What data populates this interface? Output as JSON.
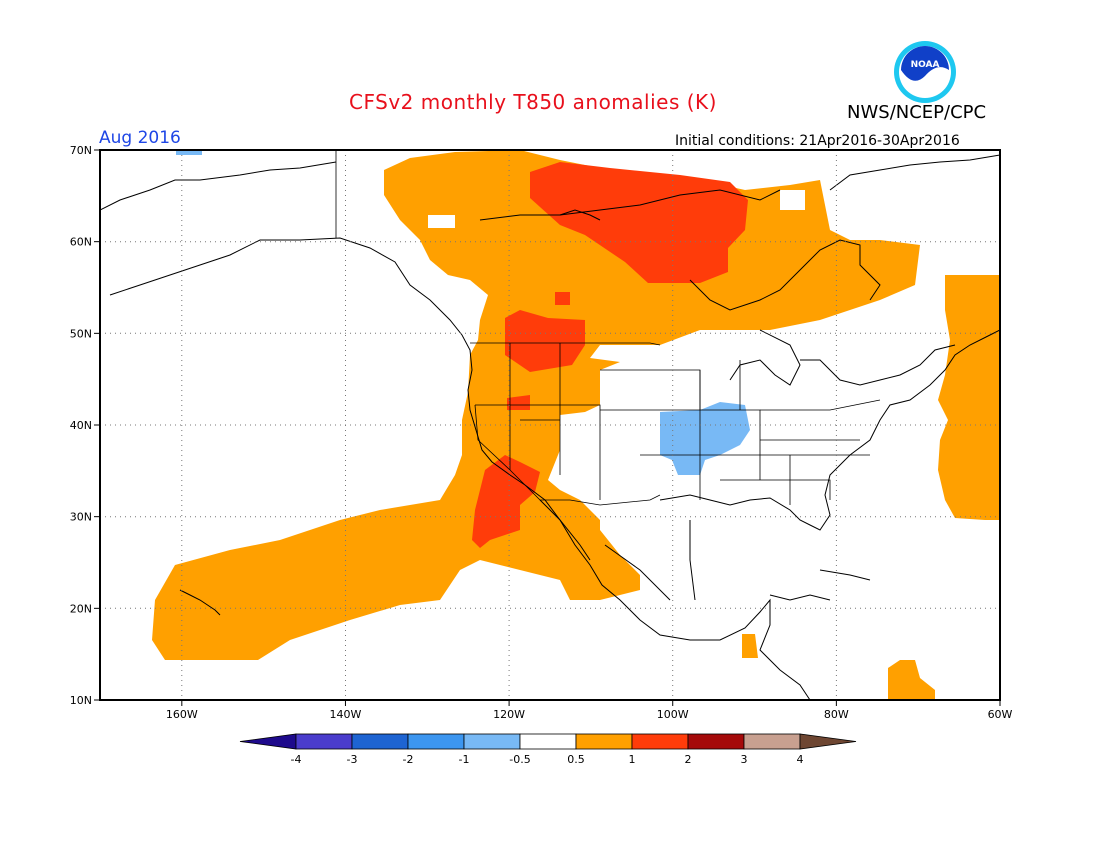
{
  "header": {
    "title": "CFSv2 monthly T850 anomalies (K)",
    "agency": "NWS/NCEP/CPC",
    "month": "Aug 2016",
    "initial_conditions": "Initial conditions: 21Apr2016-30Apr2016",
    "logo_text": "NOAA"
  },
  "map": {
    "lat_labels": [
      "70N",
      "60N",
      "50N",
      "40N",
      "30N",
      "20N",
      "10N"
    ],
    "lon_labels": [
      "160W",
      "140W",
      "120W",
      "100W",
      "80W",
      "60W"
    ]
  },
  "colorbar": {
    "labels": [
      "-4",
      "-3",
      "-2",
      "-1",
      "-0.5",
      "0.5",
      "1",
      "2",
      "3",
      "4"
    ],
    "colors": [
      "#1e0a8c",
      "#4a3ccc",
      "#1e64d2",
      "#3c96f0",
      "#78b9f5",
      "#ffffff",
      "#ffa000",
      "#ff3c0a",
      "#a50a0a",
      "#c8a090",
      "#6e4632"
    ]
  },
  "anomaly_colors": {
    "warm_0_5_to_1": "#ffa000",
    "warm_1_to_2": "#ff3c0a",
    "cool_minus_1_to_minus_0_5": "#78b9f5"
  }
}
